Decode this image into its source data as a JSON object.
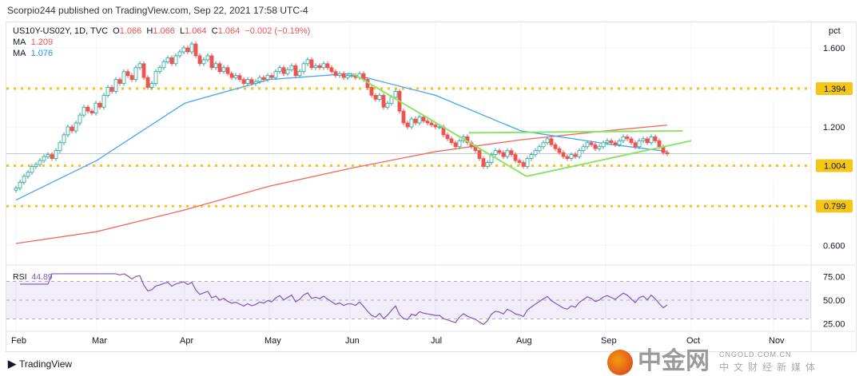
{
  "header": {
    "published": "Scorpio244 published on TradingView.com, Sep 22, 2021 17:58 UTC-4"
  },
  "legend": {
    "symbol": "US10Y-US02Y, 1D, TVC",
    "o_label": "O",
    "o": "1.066",
    "h_label": "H",
    "h": "1.066",
    "l_label": "L",
    "l": "1.064",
    "c_label": "C",
    "c": "1.064",
    "change": "−0.002 (−0.19%)",
    "ma1_label": "MA",
    "ma1": "1.209",
    "ma2_label": "MA",
    "ma2": "1.076"
  },
  "rsi": {
    "label": "RSI",
    "value": "44.89"
  },
  "footer": {
    "brand": "TradingView"
  },
  "watermark": {
    "name": "中金网",
    "domain": "CNGOLD.COM.CN",
    "tagline": "中文财经新媒体"
  },
  "colors": {
    "up": "#26a69a",
    "down": "#ef5350",
    "ma1": "#f4675b",
    "ma2": "#42a5f5",
    "level": "#f5c518",
    "trend": "#8ee36b",
    "rsi": "#7e57c2"
  },
  "chart_data": {
    "type": "candlestick",
    "unit_label": "pct",
    "ylim": [
      0.5,
      1.72
    ],
    "yticks": [
      0.6,
      0.8,
      1.0,
      1.2,
      1.4,
      1.6
    ],
    "xticks": [
      "Feb",
      "Mar",
      "Apr",
      "May",
      "Jun",
      "Jul",
      "Aug",
      "Sep",
      "Oct",
      "Nov"
    ],
    "start_date": "2021-02-01",
    "closes": [
      0.89,
      0.92,
      0.95,
      0.97,
      1.0,
      1.01,
      1.03,
      1.05,
      1.06,
      1.04,
      1.08,
      1.12,
      1.16,
      1.2,
      1.18,
      1.22,
      1.26,
      1.3,
      1.28,
      1.27,
      1.32,
      1.3,
      1.36,
      1.4,
      1.38,
      1.44,
      1.42,
      1.48,
      1.46,
      1.44,
      1.5,
      1.52,
      1.45,
      1.4,
      1.42,
      1.48,
      1.5,
      1.53,
      1.55,
      1.52,
      1.56,
      1.58,
      1.6,
      1.58,
      1.62,
      1.56,
      1.52,
      1.54,
      1.56,
      1.5,
      1.52,
      1.48,
      1.5,
      1.47,
      1.45,
      1.46,
      1.44,
      1.42,
      1.44,
      1.42,
      1.43,
      1.45,
      1.44,
      1.46,
      1.45,
      1.48,
      1.5,
      1.47,
      1.49,
      1.51,
      1.46,
      1.48,
      1.52,
      1.54,
      1.5,
      1.51,
      1.5,
      1.52,
      1.5,
      1.48,
      1.46,
      1.47,
      1.45,
      1.46,
      1.46,
      1.45,
      1.47,
      1.44,
      1.4,
      1.36,
      1.34,
      1.36,
      1.3,
      1.32,
      1.35,
      1.38,
      1.28,
      1.22,
      1.2,
      1.24,
      1.22,
      1.25,
      1.23,
      1.22,
      1.21,
      1.2,
      1.2,
      1.16,
      1.14,
      1.12,
      1.1,
      1.13,
      1.15,
      1.12,
      1.1,
      1.08,
      1.04,
      1.0,
      1.02,
      1.06,
      1.08,
      1.07,
      1.05,
      1.08,
      1.06,
      1.03,
      1.02,
      1.0,
      1.04,
      1.06,
      1.08,
      1.1,
      1.12,
      1.14,
      1.11,
      1.09,
      1.07,
      1.05,
      1.04,
      1.06,
      1.05,
      1.08,
      1.1,
      1.12,
      1.11,
      1.09,
      1.1,
      1.12,
      1.13,
      1.12,
      1.11,
      1.13,
      1.15,
      1.14,
      1.12,
      1.1,
      1.13,
      1.14,
      1.12,
      1.15,
      1.13,
      1.1,
      1.07,
      1.064
    ],
    "ma_red": {
      "Feb": 0.61,
      "Mar": 0.67,
      "Apr": 0.78,
      "May": 0.9,
      "Jun": 0.99,
      "Jul": 1.075,
      "Aug": 1.135,
      "Sep": 1.18,
      "Sep 22": 1.209
    },
    "ma_blue": {
      "Feb": 0.83,
      "Mar": 1.03,
      "Apr": 1.32,
      "May": 1.44,
      "Jun": 1.47,
      "Jul": 1.36,
      "Aug": 1.18,
      "Sep": 1.115,
      "Sep 22": 1.076
    },
    "levels": [
      1.394,
      1.004,
      0.799
    ],
    "last_price": 1.064,
    "trendlines": [
      {
        "from": [
          "Jun 2",
          1.47
        ],
        "to": [
          "Aug 3",
          0.95
        ]
      },
      {
        "from": [
          "Aug 3",
          0.95
        ],
        "to": [
          "Oct 1",
          1.13
        ]
      },
      {
        "from": [
          "Jul 13",
          1.17
        ],
        "to": [
          "Sep 28",
          1.18
        ]
      }
    ],
    "rsi": {
      "ylim": [
        20,
        80
      ],
      "yticks": [
        75,
        50,
        25
      ],
      "band": [
        30,
        70
      ],
      "last": 44.89
    }
  }
}
